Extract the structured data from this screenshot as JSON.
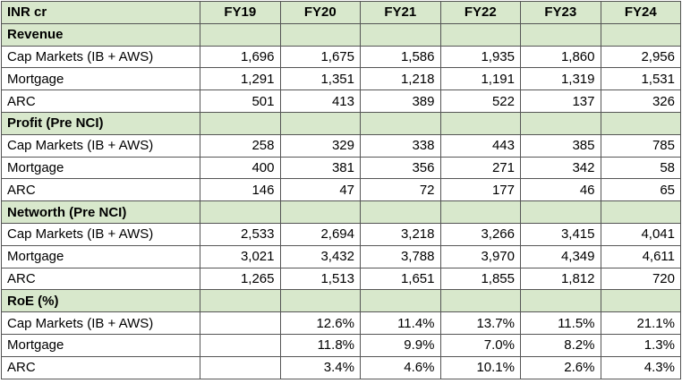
{
  "header": {
    "corner": "INR cr",
    "years": [
      "FY19",
      "FY20",
      "FY21",
      "FY22",
      "FY23",
      "FY24"
    ]
  },
  "sections": [
    {
      "title": "Revenue",
      "rows": [
        {
          "label": "Cap Markets (IB + AWS)",
          "values": [
            "1,696",
            "1,675",
            "1,586",
            "1,935",
            "1,860",
            "2,956"
          ]
        },
        {
          "label": "Mortgage",
          "values": [
            "1,291",
            "1,351",
            "1,218",
            "1,191",
            "1,319",
            "1,531"
          ]
        },
        {
          "label": "ARC",
          "values": [
            "501",
            "413",
            "389",
            "522",
            "137",
            "326"
          ]
        }
      ]
    },
    {
      "title": "Profit (Pre NCI)",
      "rows": [
        {
          "label": "Cap Markets (IB + AWS)",
          "values": [
            "258",
            "329",
            "338",
            "443",
            "385",
            "785"
          ]
        },
        {
          "label": "Mortgage",
          "values": [
            "400",
            "381",
            "356",
            "271",
            "342",
            "58"
          ]
        },
        {
          "label": "ARC",
          "values": [
            "146",
            "47",
            "72",
            "177",
            "46",
            "65"
          ]
        }
      ]
    },
    {
      "title": "Networth (Pre NCI)",
      "rows": [
        {
          "label": "Cap Markets (IB + AWS)",
          "values": [
            "2,533",
            "2,694",
            "3,218",
            "3,266",
            "3,415",
            "4,041"
          ]
        },
        {
          "label": "Mortgage",
          "values": [
            "3,021",
            "3,432",
            "3,788",
            "3,970",
            "4,349",
            "4,611"
          ]
        },
        {
          "label": "ARC",
          "values": [
            "1,265",
            "1,513",
            "1,651",
            "1,855",
            "1,812",
            "720"
          ]
        }
      ]
    },
    {
      "title": "RoE (%)",
      "rows": [
        {
          "label": "Cap Markets (IB + AWS)",
          "values": [
            "",
            "12.6%",
            "11.4%",
            "13.7%",
            "11.5%",
            "21.1%"
          ]
        },
        {
          "label": "Mortgage",
          "values": [
            "",
            "11.8%",
            "9.9%",
            "7.0%",
            "8.2%",
            "1.3%"
          ]
        },
        {
          "label": "ARC",
          "values": [
            "",
            "3.4%",
            "4.6%",
            "10.1%",
            "2.6%",
            "4.3%"
          ]
        }
      ]
    }
  ],
  "colors": {
    "section_fill": "#d8e8cc",
    "border": "#555555"
  }
}
